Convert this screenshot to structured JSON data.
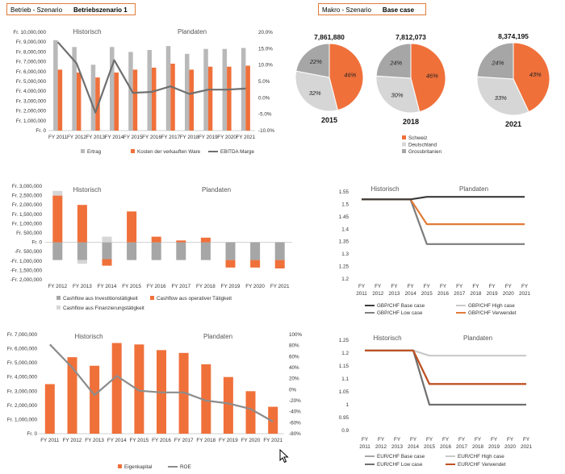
{
  "header_left": {
    "label": "Betrieb - Szenario",
    "value": "Betriebszenario 1"
  },
  "header_right": {
    "label": "Makro - Szenario",
    "value": "Base case"
  },
  "colors": {
    "orange": "#f0703a",
    "gray": "#b9b9b9",
    "dark": "#6f6f6f",
    "darkline": "#3a3a3a",
    "lightgray": "#c9c9c9",
    "midgray": "#a6a6a6"
  },
  "chart_data": [
    {
      "id": "income",
      "type": "bar",
      "section_labels": [
        "Historisch",
        "Plandaten"
      ],
      "categories": [
        "FY 2011",
        "FY 2012",
        "FY 2013",
        "FY 2014",
        "FY 2015",
        "FY 2016",
        "FY 2017",
        "FY 2018",
        "FY 2019",
        "FY 2020",
        "FY 2021"
      ],
      "y_ticks": [
        "Fr. 0",
        "Fr. 1,000,000",
        "Fr. 2,000,000",
        "Fr. 3,000,000",
        "Fr. 4,000,000",
        "Fr. 5,000,000",
        "Fr. 6,000,000",
        "Fr. 7,000,000",
        "Fr. 8,000,000",
        "Fr. 9,000,000",
        "Fr. 10,000,000"
      ],
      "y2_ticks": [
        "-10.0%",
        "-5.0%",
        "0.0%",
        "5.0%",
        "10.0%",
        "15.0%",
        "20.0%"
      ],
      "ylim": [
        0,
        10000000
      ],
      "y2lim": [
        -10,
        20
      ],
      "series": [
        {
          "name": "Ertrag",
          "kind": "bar",
          "color": "#b9b9b9",
          "values": [
            9200000,
            8500000,
            6700000,
            8500000,
            8000000,
            8200000,
            8600000,
            7800000,
            8300000,
            8300000,
            8400000
          ]
        },
        {
          "name": "Kosten der verkauften Ware",
          "kind": "bar",
          "color": "#f0703a",
          "values": [
            6200000,
            5900000,
            5400000,
            5900000,
            6200000,
            6400000,
            6800000,
            6200000,
            6500000,
            6500000,
            6600000
          ]
        },
        {
          "name": "EBITDA Marge",
          "kind": "line",
          "axis": "y2",
          "color": "#6f6f6f",
          "values": [
            17,
            10.5,
            -4.5,
            11.5,
            1.5,
            1.8,
            3.5,
            1.2,
            2.5,
            2.5,
            2.8
          ]
        }
      ]
    },
    {
      "id": "pies",
      "type": "pie",
      "legend": [
        {
          "name": "Schweiz",
          "color": "#f0703a"
        },
        {
          "name": "Deutschland",
          "color": "#d6d6d6"
        },
        {
          "name": "Grossbritanien",
          "color": "#a6a6a6"
        }
      ],
      "pies": [
        {
          "label": "2015",
          "total": "7,861,880",
          "slices": [
            46,
            32,
            22
          ]
        },
        {
          "label": "2018",
          "total": "7,812,073",
          "slices": [
            46,
            30,
            24
          ]
        },
        {
          "label": "2021",
          "total": "8,374,195",
          "slices": [
            43,
            33,
            24
          ]
        }
      ]
    },
    {
      "id": "cashflow",
      "type": "bar",
      "section_labels": [
        "Historisch",
        "Plandaten"
      ],
      "categories": [
        "FY 2012",
        "FY 2013",
        "FY 2014",
        "FY 2015",
        "FY 2016",
        "FY 2017",
        "FY 2018",
        "FY 2019",
        "FY 2020",
        "FY 2021"
      ],
      "y_ticks": [
        "-Fr. 2,000,000",
        "-Fr. 1,500,000",
        "-Fr. 1,000,000",
        "-Fr. 500,000",
        "Fr. 0",
        "Fr. 500,000",
        "Fr. 1,000,000",
        "Fr. 1,500,000",
        "Fr. 2,000,000",
        "Fr. 2,500,000",
        "Fr. 3,000,000"
      ],
      "ylim": [
        -2000000,
        3000000
      ],
      "series": [
        {
          "name": "Cashflow aus Investitionstätigkeit",
          "color": "#a6a6a6",
          "values": [
            -950000,
            -950000,
            -900000,
            -950000,
            -950000,
            -950000,
            -950000,
            -950000,
            -950000,
            -950000
          ]
        },
        {
          "name": "Cashflow aus operativer Tätigkeit",
          "color": "#f0703a",
          "values": [
            2500000,
            2000000,
            -350000,
            1650000,
            300000,
            100000,
            250000,
            -400000,
            -400000,
            -450000
          ]
        },
        {
          "name": "Cashflow aus Finanzierungstätigkeit",
          "color": "#d6d6d6",
          "values": [
            250000,
            -200000,
            300000,
            0,
            0,
            0,
            0,
            0,
            0,
            0
          ]
        }
      ]
    },
    {
      "id": "gbp",
      "type": "line",
      "section_labels": [
        "Historisch",
        "Plandaten"
      ],
      "categories": [
        "FY 2011",
        "FY 2012",
        "FY 2013",
        "FY 2014",
        "FY 2015",
        "FY 2016",
        "FY 2017",
        "FY 2018",
        "FY 2019",
        "FY 2020",
        "FY 2021"
      ],
      "y_ticks": [
        "1.2",
        "1.25",
        "1.3",
        "1.35",
        "1.4",
        "1.45",
        "1.5",
        "1.55"
      ],
      "ylim": [
        1.2,
        1.55
      ],
      "series": [
        {
          "name": "GBP/CHF Base case",
          "color": "#3a3a3a",
          "values": [
            1.52,
            1.52,
            1.52,
            1.52,
            1.53,
            1.53,
            1.53,
            1.53,
            1.53,
            1.53,
            1.53
          ]
        },
        {
          "name": "GBP/CHF High case",
          "color": "#c9c9c9",
          "values": [
            1.52,
            1.52,
            1.52,
            1.52,
            1.34,
            1.34,
            1.34,
            1.34,
            1.34,
            1.34,
            1.34
          ]
        },
        {
          "name": "GBP/CHF Low case",
          "color": "#7f7f7f",
          "values": [
            1.52,
            1.52,
            1.52,
            1.52,
            1.34,
            1.34,
            1.34,
            1.34,
            1.34,
            1.34,
            1.34
          ]
        },
        {
          "name": "GBP/CHF Verwendet",
          "color": "#e07b39",
          "values": [
            1.52,
            1.52,
            1.52,
            1.52,
            1.42,
            1.42,
            1.42,
            1.42,
            1.42,
            1.42,
            1.42
          ]
        }
      ]
    },
    {
      "id": "equity",
      "type": "bar",
      "section_labels": [
        "Historisch",
        "Plandaten"
      ],
      "categories": [
        "FY 2011",
        "FY 2012",
        "FY 2013",
        "FY 2014",
        "FY 2015",
        "FY 2016",
        "FY 2017",
        "FY 2018",
        "FY 2019",
        "FY 2020",
        "FY 2021"
      ],
      "y_ticks": [
        "Fr. 0",
        "Fr. 1,000,000",
        "Fr. 2,000,000",
        "Fr. 3,000,000",
        "Fr. 4,000,000",
        "Fr. 5,000,000",
        "Fr. 6,000,000",
        "Fr. 7,000,000"
      ],
      "y2_ticks": [
        "-80%",
        "-60%",
        "-40%",
        "-20%",
        "0%",
        "20%",
        "40%",
        "60%",
        "80%",
        "100%"
      ],
      "ylim": [
        0,
        7000000
      ],
      "y2lim": [
        -80,
        100
      ],
      "series": [
        {
          "name": "Eigenkapital",
          "kind": "bar",
          "color": "#f0703a",
          "values": [
            3500000,
            5400000,
            4800000,
            6400000,
            6300000,
            5900000,
            5700000,
            4900000,
            4000000,
            3000000,
            1900000
          ]
        },
        {
          "name": "ROE",
          "kind": "line",
          "axis": "y2",
          "color": "#8c8c8c",
          "values": [
            82,
            40,
            -10,
            25,
            -2,
            -5,
            -5,
            -20,
            -25,
            -35,
            -58
          ]
        }
      ]
    },
    {
      "id": "eur",
      "type": "line",
      "section_labels": [
        "Historisch",
        "Plandaten"
      ],
      "categories": [
        "FY 2011",
        "FY 2012",
        "FY 2013",
        "FY 2014",
        "FY 2015",
        "FY 2016",
        "FY 2017",
        "FY 2018",
        "FY 2019",
        "FY 2020",
        "FY 2021"
      ],
      "y_ticks": [
        "0.9",
        "0.95",
        "1",
        "1.05",
        "1.1",
        "1.15",
        "1.2",
        "1.25"
      ],
      "ylim": [
        0.9,
        1.25
      ],
      "series": [
        {
          "name": "EUR/CHF Base case",
          "color": "#a6a6a6",
          "values": [
            1.21,
            1.21,
            1.21,
            1.21,
            1.08,
            1.08,
            1.08,
            1.08,
            1.08,
            1.08,
            1.08
          ]
        },
        {
          "name": "EUR/CHF High case",
          "color": "#c9c9c9",
          "values": [
            1.21,
            1.21,
            1.21,
            1.21,
            1.19,
            1.19,
            1.19,
            1.19,
            1.19,
            1.19,
            1.19
          ]
        },
        {
          "name": "EUR/CHF Low case",
          "color": "#6f6f6f",
          "values": [
            1.21,
            1.21,
            1.21,
            1.21,
            1.0,
            1.0,
            1.0,
            1.0,
            1.0,
            1.0,
            1.0
          ]
        },
        {
          "name": "EUR/CHF Verwendet",
          "color": "#c0501f",
          "values": [
            1.21,
            1.21,
            1.21,
            1.21,
            1.08,
            1.08,
            1.08,
            1.08,
            1.08,
            1.08,
            1.08
          ]
        }
      ]
    }
  ]
}
